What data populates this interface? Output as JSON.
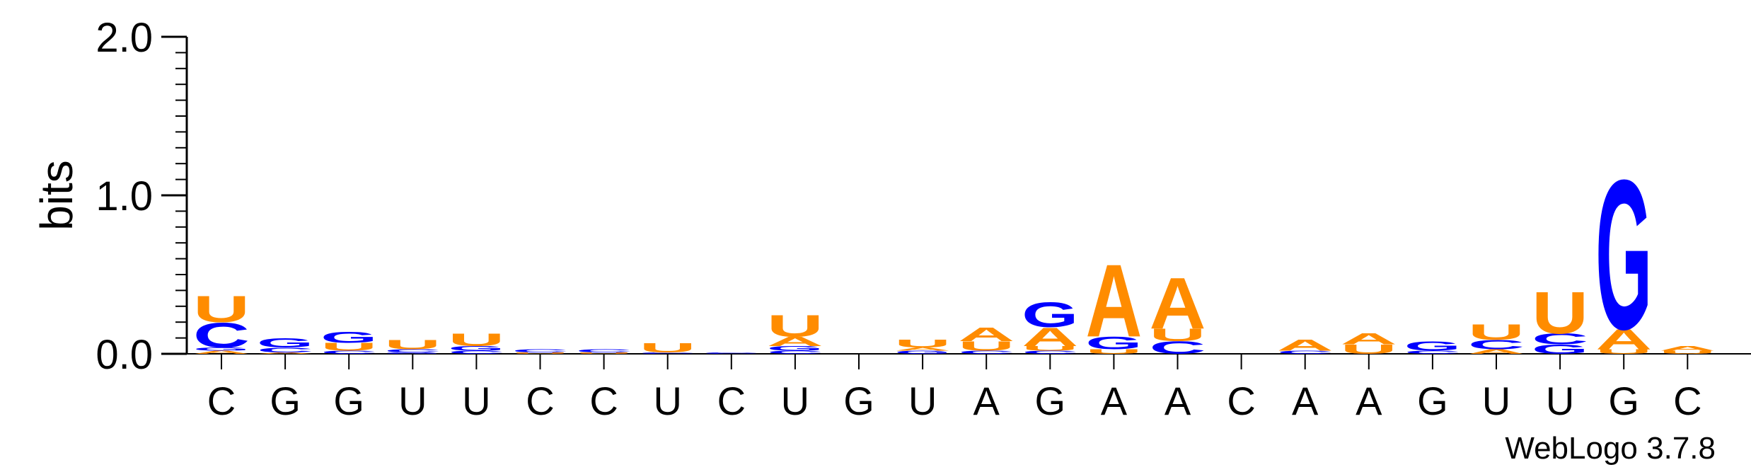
{
  "chart_data": {
    "type": "sequence-logo",
    "ylabel": "bits",
    "ylim": [
      0,
      2.0
    ],
    "yticks": [
      "0.0",
      "1.0",
      "2.0"
    ],
    "y_tick_values": [
      0,
      1,
      2
    ],
    "footer": "WebLogo 3.7.8",
    "colors": {
      "A": "#ff8c00",
      "U": "#ff8c00",
      "G": "#0000ff",
      "C": "#0000ff"
    },
    "positions": [
      {
        "label": "C",
        "stack": [
          {
            "l": "A",
            "h": 0.02
          },
          {
            "l": "G",
            "h": 0.02
          },
          {
            "l": "C",
            "h": 0.16
          },
          {
            "l": "U",
            "h": 0.17
          }
        ]
      },
      {
        "label": "G",
        "stack": [
          {
            "l": "A",
            "h": 0.01
          },
          {
            "l": "C",
            "h": 0.03
          },
          {
            "l": "G",
            "h": 0.06
          }
        ]
      },
      {
        "label": "G",
        "stack": [
          {
            "l": "C",
            "h": 0.02
          },
          {
            "l": "U",
            "h": 0.05
          },
          {
            "l": "G",
            "h": 0.07
          }
        ]
      },
      {
        "label": "U",
        "stack": [
          {
            "l": "G",
            "h": 0.01
          },
          {
            "l": "C",
            "h": 0.02
          },
          {
            "l": "U",
            "h": 0.06
          }
        ]
      },
      {
        "label": "U",
        "stack": [
          {
            "l": "C",
            "h": 0.02
          },
          {
            "l": "G",
            "h": 0.03
          },
          {
            "l": "U",
            "h": 0.08
          }
        ]
      },
      {
        "label": "C",
        "stack": [
          {
            "l": "U",
            "h": 0.01
          },
          {
            "l": "C",
            "h": 0.02
          }
        ]
      },
      {
        "label": "C",
        "stack": [
          {
            "l": "U",
            "h": 0.01
          },
          {
            "l": "C",
            "h": 0.02
          }
        ]
      },
      {
        "label": "U",
        "stack": [
          {
            "l": "C",
            "h": 0.01
          },
          {
            "l": "U",
            "h": 0.06
          }
        ]
      },
      {
        "label": "C",
        "stack": [
          {
            "l": "C",
            "h": 0.01
          }
        ]
      },
      {
        "label": "U",
        "stack": [
          {
            "l": "C",
            "h": 0.02
          },
          {
            "l": "G",
            "h": 0.03
          },
          {
            "l": "A",
            "h": 0.06
          },
          {
            "l": "U",
            "h": 0.14
          }
        ]
      },
      {
        "label": "G",
        "stack": []
      },
      {
        "label": "U",
        "stack": [
          {
            "l": "G",
            "h": 0.02
          },
          {
            "l": "A",
            "h": 0.02
          },
          {
            "l": "U",
            "h": 0.05
          }
        ]
      },
      {
        "label": "A",
        "stack": [
          {
            "l": "C",
            "h": 0.02
          },
          {
            "l": "U",
            "h": 0.06
          },
          {
            "l": "A",
            "h": 0.09
          }
        ]
      },
      {
        "label": "G",
        "stack": [
          {
            "l": "C",
            "h": 0.02
          },
          {
            "l": "U",
            "h": 0.03
          },
          {
            "l": "A",
            "h": 0.12
          },
          {
            "l": "G",
            "h": 0.16
          }
        ]
      },
      {
        "label": "A",
        "stack": [
          {
            "l": "U",
            "h": 0.03
          },
          {
            "l": "G",
            "h": 0.08
          },
          {
            "l": "A",
            "h": 0.47
          }
        ]
      },
      {
        "label": "A",
        "stack": [
          {
            "l": "C",
            "h": 0.08
          },
          {
            "l": "U",
            "h": 0.08
          },
          {
            "l": "A",
            "h": 0.33
          }
        ]
      },
      {
        "label": "C",
        "stack": []
      },
      {
        "label": "A",
        "stack": [
          {
            "l": "C",
            "h": 0.02
          },
          {
            "l": "A",
            "h": 0.07
          }
        ]
      },
      {
        "label": "A",
        "stack": [
          {
            "l": "U",
            "h": 0.06
          },
          {
            "l": "A",
            "h": 0.07
          }
        ]
      },
      {
        "label": "G",
        "stack": [
          {
            "l": "C",
            "h": 0.02
          },
          {
            "l": "G",
            "h": 0.06
          }
        ]
      },
      {
        "label": "U",
        "stack": [
          {
            "l": "A",
            "h": 0.03
          },
          {
            "l": "C",
            "h": 0.06
          },
          {
            "l": "U",
            "h": 0.1
          }
        ]
      },
      {
        "label": "U",
        "stack": [
          {
            "l": "G",
            "h": 0.06
          },
          {
            "l": "C",
            "h": 0.07
          },
          {
            "l": "U",
            "h": 0.27
          }
        ]
      },
      {
        "label": "G",
        "stack": [
          {
            "l": "U",
            "h": 0.03
          },
          {
            "l": "A",
            "h": 0.13
          },
          {
            "l": "G",
            "h": 0.97
          }
        ]
      },
      {
        "label": "C",
        "stack": [
          {
            "l": "U",
            "h": 0.02
          },
          {
            "l": "A",
            "h": 0.03
          }
        ]
      }
    ]
  }
}
